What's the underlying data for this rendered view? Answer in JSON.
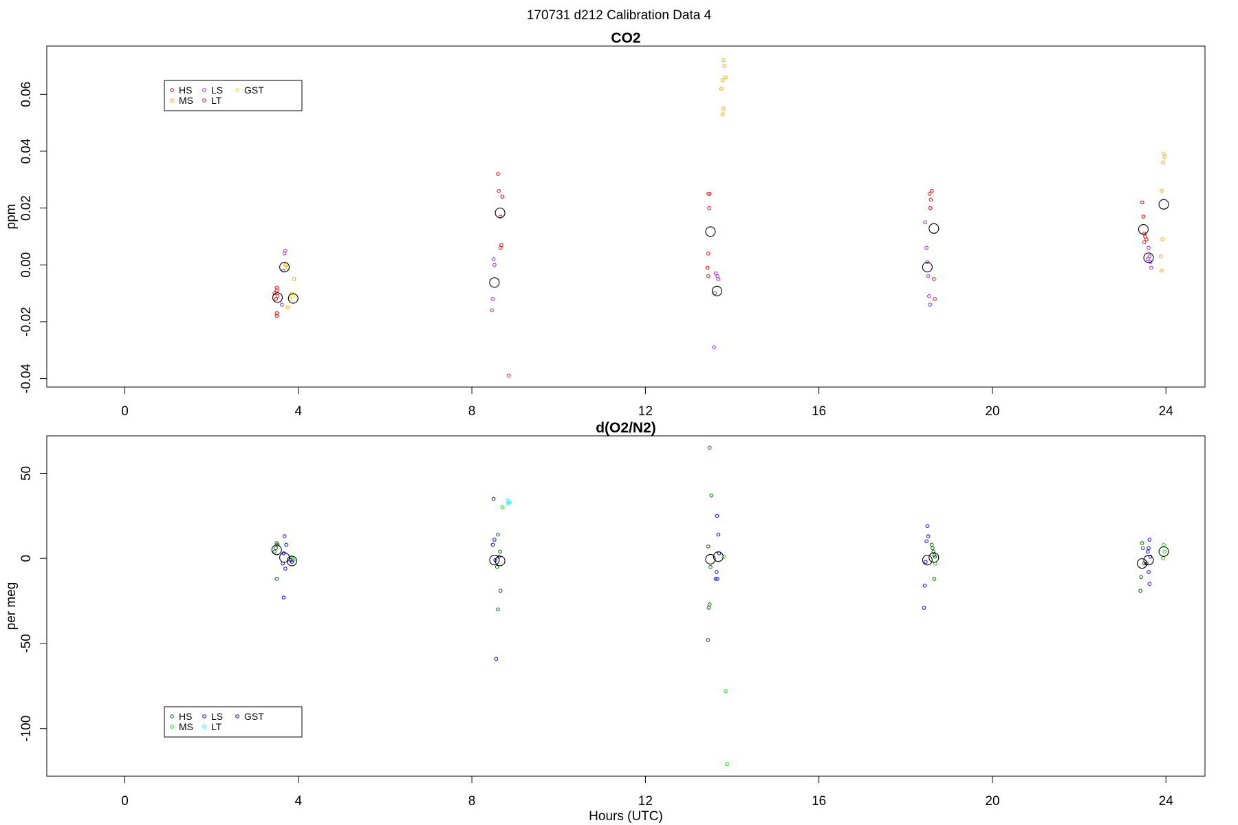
{
  "title": "170731   d212   Calibration Data 4",
  "chart_data": [
    {
      "type": "scatter",
      "title": "CO2",
      "xlabel": "",
      "ylabel": "ppm",
      "xlim": [
        -1.8,
        24.9
      ],
      "ylim": [
        -0.043,
        0.077
      ],
      "x_ticks": [
        0,
        4,
        8,
        12,
        16,
        20,
        24
      ],
      "x_tick_labels": [
        "0",
        "4",
        "8",
        "12",
        "16",
        "20",
        "24"
      ],
      "y_ticks": [
        -0.04,
        -0.02,
        0,
        0.02,
        0.04,
        0.06
      ],
      "y_tick_labels": [
        "-0.04",
        "-0.02",
        "0.00",
        "0.02",
        "0.04",
        "0.06"
      ],
      "legend": {
        "position": "top-left",
        "entries": [
          {
            "label": "HS",
            "color": "#ff0000"
          },
          {
            "label": "MS",
            "color": "#ffa500"
          },
          {
            "label": "LS",
            "color": "#a020f0"
          },
          {
            "label": "LT",
            "color": "#dd1040"
          },
          {
            "label": "GST",
            "color": "#ffd700"
          }
        ]
      },
      "series": [
        {
          "label": "HS",
          "color": "#ff0000",
          "points": [
            [
              3.5,
              -0.008
            ],
            [
              3.5,
              -0.009
            ],
            [
              3.45,
              -0.01
            ],
            [
              3.52,
              -0.011
            ],
            [
              3.48,
              -0.012
            ],
            [
              3.5,
              -0.017
            ],
            [
              3.5,
              -0.018
            ],
            [
              8.6,
              0.032
            ],
            [
              8.62,
              0.026
            ],
            [
              8.7,
              0.024
            ],
            [
              8.66,
              0.017
            ],
            [
              8.68,
              0.007
            ],
            [
              8.66,
              0.006
            ],
            [
              13.45,
              0.025
            ],
            [
              13.48,
              0.025
            ],
            [
              13.47,
              0.02
            ],
            [
              13.45,
              0.004
            ],
            [
              13.43,
              -0.001
            ],
            [
              13.45,
              -0.004
            ],
            [
              18.6,
              0.026
            ],
            [
              18.55,
              0.025
            ],
            [
              18.58,
              0.023
            ],
            [
              18.57,
              0.02
            ],
            [
              18.65,
              -0.005
            ],
            [
              18.67,
              -0.012
            ],
            [
              23.45,
              0.022
            ],
            [
              23.48,
              0.017
            ],
            [
              23.5,
              0.011
            ],
            [
              23.52,
              0.01
            ],
            [
              23.55,
              0.009
            ],
            [
              23.5,
              0.008
            ]
          ]
        },
        {
          "label": "MS",
          "color": "#ffa500",
          "points": [
            [
              3.7,
              0.0
            ],
            [
              3.75,
              -0.001
            ],
            [
              3.9,
              -0.005
            ],
            [
              3.8,
              -0.012
            ],
            [
              3.75,
              -0.015
            ],
            [
              13.8,
              0.072
            ],
            [
              13.82,
              0.07
            ],
            [
              13.78,
              0.065
            ],
            [
              13.85,
              0.066
            ],
            [
              13.75,
              0.062
            ],
            [
              13.8,
              0.055
            ],
            [
              13.78,
              0.053
            ],
            [
              23.95,
              0.039
            ],
            [
              23.97,
              0.038
            ],
            [
              23.93,
              0.036
            ],
            [
              23.9,
              0.026
            ],
            [
              23.92,
              0.009
            ],
            [
              23.88,
              0.003
            ],
            [
              23.9,
              -0.002
            ]
          ]
        },
        {
          "label": "LS",
          "color": "#a020f0",
          "points": [
            [
              3.7,
              0.005
            ],
            [
              3.68,
              0.004
            ],
            [
              3.65,
              -0.002
            ],
            [
              3.62,
              -0.014
            ],
            [
              8.5,
              0.002
            ],
            [
              8.52,
              0.0
            ],
            [
              8.48,
              -0.012
            ],
            [
              8.46,
              -0.016
            ],
            [
              13.62,
              -0.003
            ],
            [
              13.66,
              -0.004
            ],
            [
              13.68,
              -0.005
            ],
            [
              13.6,
              -0.01
            ],
            [
              13.58,
              -0.029
            ],
            [
              18.45,
              0.015
            ],
            [
              18.48,
              0.006
            ],
            [
              18.5,
              0.001
            ],
            [
              18.52,
              -0.004
            ],
            [
              18.54,
              -0.011
            ],
            [
              18.56,
              -0.014
            ],
            [
              23.6,
              0.006
            ],
            [
              23.62,
              0.003
            ],
            [
              23.58,
              0.002
            ],
            [
              23.64,
              0.001
            ],
            [
              23.66,
              -0.001
            ]
          ]
        },
        {
          "label": "LT",
          "color": "#dd1040",
          "points": [
            [
              8.85,
              -0.039
            ]
          ]
        },
        {
          "label": "GST",
          "color": "#ffd700",
          "points": [
            [
              3.85,
              -0.01
            ],
            [
              3.88,
              -0.011
            ]
          ]
        },
        {
          "label": "mean",
          "color": "#000000",
          "points": [
            [
              3.52,
              -0.0115
            ],
            [
              3.68,
              -0.0008
            ],
            [
              3.88,
              -0.0118
            ],
            [
              8.52,
              -0.0062
            ],
            [
              8.65,
              0.0183
            ],
            [
              13.5,
              0.0117
            ],
            [
              13.65,
              -0.0092
            ],
            [
              18.5,
              -0.0008
            ],
            [
              18.65,
              0.0128
            ],
            [
              23.48,
              0.0125
            ],
            [
              23.6,
              0.0025
            ],
            [
              23.95,
              0.0213
            ]
          ]
        }
      ]
    },
    {
      "type": "scatter",
      "title": "d(O2/N2)",
      "xlabel": "Hours (UTC)",
      "ylabel": "per meg",
      "xlim": [
        -1.8,
        24.9
      ],
      "ylim": [
        -128,
        72
      ],
      "x_ticks": [
        0,
        4,
        8,
        12,
        16,
        20,
        24
      ],
      "x_tick_labels": [
        "0",
        "4",
        "8",
        "12",
        "16",
        "20",
        "24"
      ],
      "y_ticks": [
        -100,
        -50,
        0,
        50
      ],
      "y_tick_labels": [
        "-100",
        "-50",
        "0",
        "50"
      ],
      "legend": {
        "position": "bottom-left",
        "entries": [
          {
            "label": "HS",
            "color": "#006400"
          },
          {
            "label": "MS",
            "color": "#00ee00"
          },
          {
            "label": "LS",
            "color": "#0000ff"
          },
          {
            "label": "LT",
            "color": "#00ffff"
          },
          {
            "label": "GST",
            "color": "#00008b"
          }
        ]
      },
      "series": [
        {
          "label": "HS",
          "color": "#006400",
          "points": [
            [
              3.5,
              9
            ],
            [
              3.52,
              8
            ],
            [
              3.48,
              6
            ],
            [
              3.45,
              4
            ],
            [
              3.5,
              -12
            ],
            [
              8.6,
              14
            ],
            [
              8.65,
              4
            ],
            [
              8.62,
              1
            ],
            [
              8.58,
              -5
            ],
            [
              8.66,
              -19
            ],
            [
              8.6,
              -30
            ],
            [
              13.48,
              65
            ],
            [
              13.52,
              37
            ],
            [
              13.45,
              7
            ],
            [
              13.5,
              -5
            ],
            [
              13.48,
              -27
            ],
            [
              13.46,
              -29
            ],
            [
              13.44,
              -48
            ],
            [
              18.6,
              8
            ],
            [
              18.62,
              6
            ],
            [
              18.64,
              4
            ],
            [
              18.66,
              2
            ],
            [
              18.68,
              1
            ],
            [
              18.66,
              -12
            ],
            [
              23.45,
              9
            ],
            [
              23.47,
              6
            ],
            [
              23.43,
              -11
            ],
            [
              23.41,
              -19
            ],
            [
              23.5,
              -3
            ]
          ]
        },
        {
          "label": "MS",
          "color": "#00ee00",
          "points": [
            [
              3.85,
              0
            ],
            [
              3.88,
              -1
            ],
            [
              8.7,
              30
            ],
            [
              13.82,
              1
            ],
            [
              13.85,
              -78
            ],
            [
              13.88,
              -121
            ],
            [
              18.68,
              -3
            ],
            [
              23.95,
              8
            ],
            [
              23.97,
              4
            ],
            [
              23.93,
              0
            ]
          ]
        },
        {
          "label": "LS",
          "color": "#0000ff",
          "points": [
            [
              3.68,
              13
            ],
            [
              3.72,
              8
            ],
            [
              3.66,
              3
            ],
            [
              3.64,
              -3
            ],
            [
              3.7,
              -6
            ],
            [
              3.66,
              -23
            ],
            [
              8.5,
              35
            ],
            [
              8.52,
              11
            ],
            [
              8.48,
              8
            ],
            [
              8.54,
              -1
            ],
            [
              8.56,
              -59
            ],
            [
              13.65,
              25
            ],
            [
              13.68,
              14
            ],
            [
              13.7,
              3
            ],
            [
              13.64,
              -8
            ],
            [
              13.62,
              -12
            ],
            [
              13.66,
              -12
            ],
            [
              18.5,
              19
            ],
            [
              18.52,
              13
            ],
            [
              18.48,
              10
            ],
            [
              18.46,
              -2
            ],
            [
              18.44,
              -16
            ],
            [
              18.42,
              -29
            ],
            [
              23.62,
              11
            ],
            [
              23.6,
              6
            ],
            [
              23.58,
              4
            ],
            [
              23.64,
              1
            ],
            [
              23.6,
              -8
            ],
            [
              23.62,
              -15
            ]
          ]
        },
        {
          "label": "LT",
          "color": "#00ffff",
          "points": [
            [
              8.82,
              34
            ],
            [
              8.84,
              32
            ],
            [
              8.86,
              33
            ]
          ]
        },
        {
          "label": "GST",
          "color": "#00008b",
          "points": [
            [
              3.82,
              -1
            ],
            [
              3.85,
              -2
            ],
            [
              23.55,
              -3
            ]
          ]
        },
        {
          "label": "mean",
          "color": "#000000",
          "points": [
            [
              3.5,
              5
            ],
            [
              3.68,
              0.5
            ],
            [
              3.85,
              -1.5
            ],
            [
              8.52,
              -1
            ],
            [
              8.65,
              -1.5
            ],
            [
              13.5,
              -0.5
            ],
            [
              13.68,
              1
            ],
            [
              18.5,
              -1
            ],
            [
              18.65,
              0.5
            ],
            [
              23.45,
              -3
            ],
            [
              23.6,
              -1
            ],
            [
              23.95,
              4
            ]
          ]
        }
      ]
    }
  ]
}
